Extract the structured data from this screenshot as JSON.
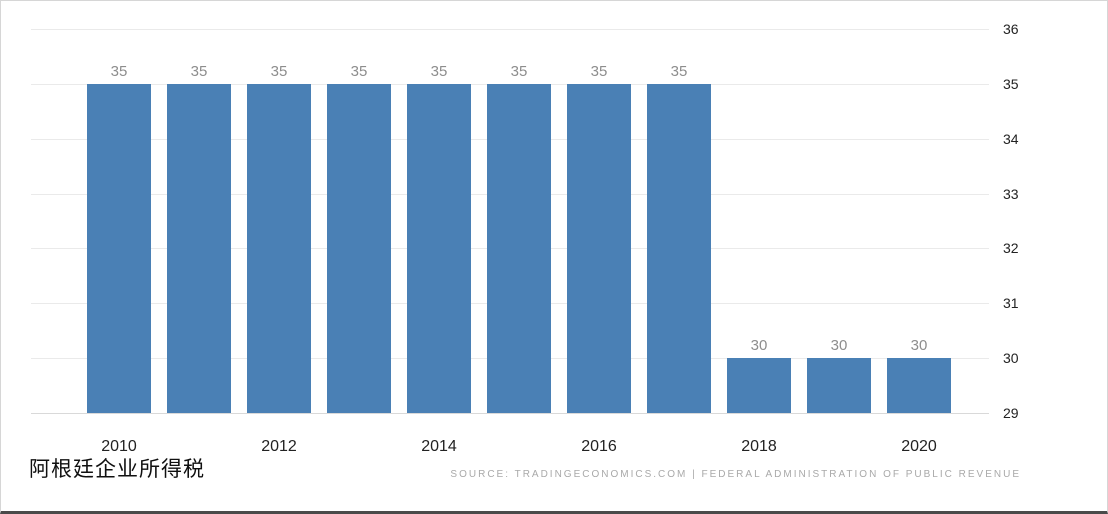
{
  "chart_data": {
    "type": "bar",
    "title": "阿根廷企业所得税",
    "categories": [
      "2010",
      "2011",
      "2012",
      "2013",
      "2014",
      "2015",
      "2016",
      "2017",
      "2018",
      "2019",
      "2020"
    ],
    "values": [
      35,
      35,
      35,
      35,
      35,
      35,
      35,
      35,
      30,
      30,
      30
    ],
    "x_tick_indices": [
      0,
      2,
      4,
      6,
      8,
      10
    ],
    "y_ticks": [
      36,
      35,
      34,
      33,
      32,
      31,
      30,
      29
    ],
    "ylim": [
      29,
      36
    ],
    "grid": "horizontal",
    "legend": "none",
    "bar_color": "#4a80b5",
    "value_label_color": "#8d8d8d"
  },
  "footer": {
    "title": "阿根廷企业所得税",
    "source": "SOURCE:  TRADINGECONOMICS.COM  |  FEDERAL  ADMINISTRATION  OF  PUBLIC  REVENUE"
  }
}
